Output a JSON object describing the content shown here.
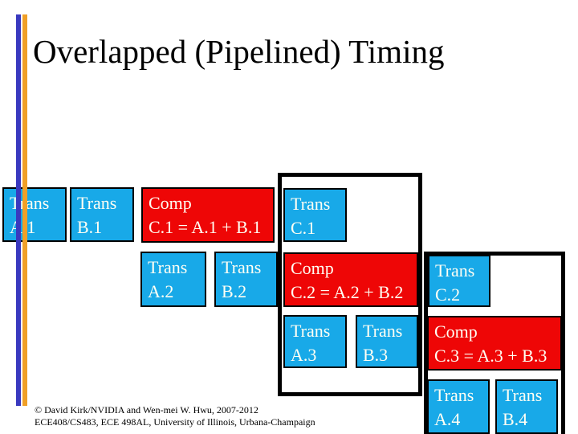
{
  "title": "Overlapped (Pipelined) Timing",
  "colors": {
    "box_blue": "#18a9e8",
    "box_red": "#ee0606",
    "bar_blue": "#3939bf",
    "bar_orange": "#f0a028",
    "box_text": "#fffff4",
    "frame_black": "#000000",
    "title_color": "#000000"
  },
  "boxes": {
    "trans_a1": {
      "line1": "Trans",
      "line2": "A.1"
    },
    "trans_b1": {
      "line1": "Trans",
      "line2": "B.1"
    },
    "comp_c1": {
      "line1": "Comp",
      "line2": "C.1 = A.1 + B.1"
    },
    "trans_c1": {
      "line1": "Trans",
      "line2": "C.1"
    },
    "trans_a2": {
      "line1": "Trans",
      "line2": "A.2"
    },
    "trans_b2": {
      "line1": "Trans",
      "line2": "B.2"
    },
    "comp_c2": {
      "line1": "Comp",
      "line2": "C.2 = A.2 + B.2"
    },
    "trans_c2": {
      "line1": "Trans",
      "line2": "C.2"
    },
    "trans_a3": {
      "line1": "Trans",
      "line2": "A.3"
    },
    "trans_b3": {
      "line1": "Trans",
      "line2": "B.3"
    },
    "comp_c3": {
      "line1": "Comp",
      "line2": "C.3 = A.3 + B.3"
    },
    "trans_a4": {
      "line1": "Trans",
      "line2": "A.4"
    },
    "trans_b4": {
      "line1": "Trans",
      "line2": "B.4"
    }
  },
  "footer": {
    "line1": "© David Kirk/NVIDIA and Wen-mei W. Hwu, 2007-2012",
    "line2": "ECE408/CS483, ECE 498AL, University of Illinois, Urbana-Champaign"
  }
}
